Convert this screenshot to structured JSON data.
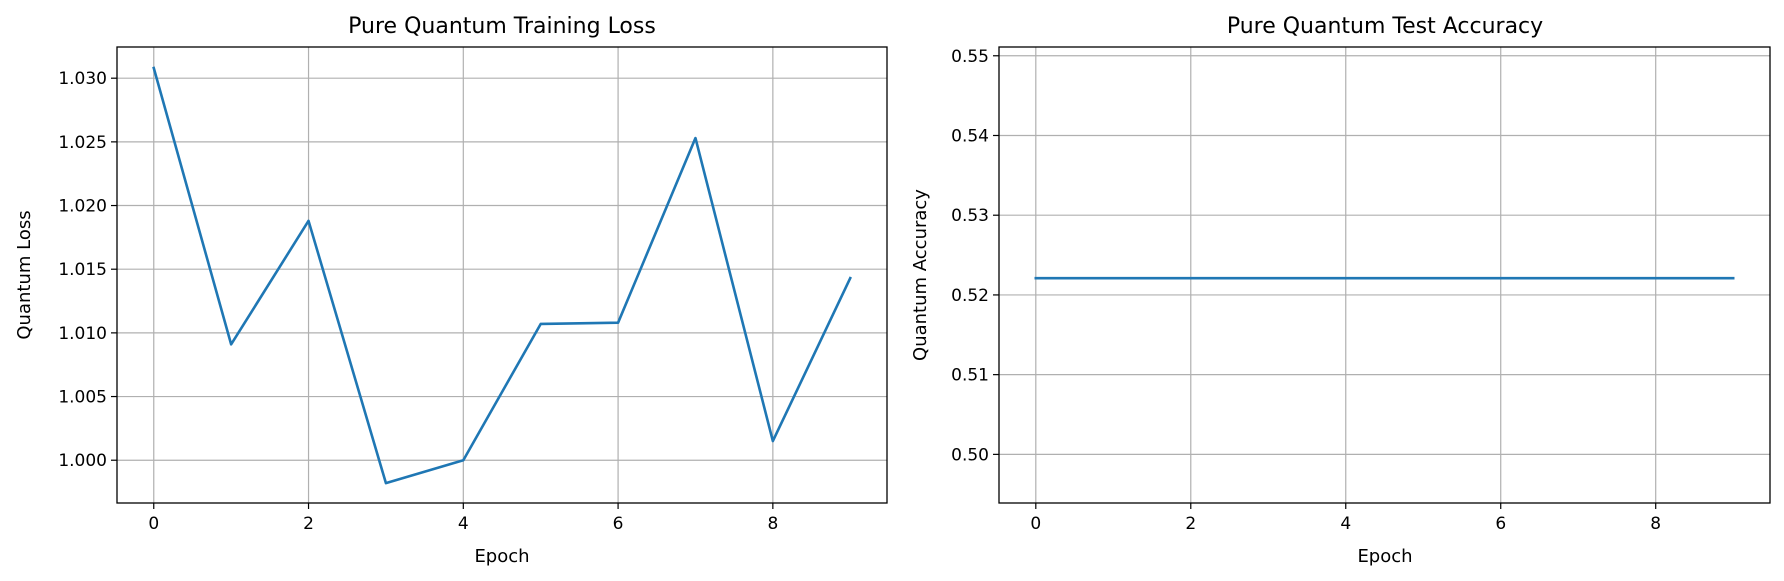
{
  "colors": {
    "line": "#1f77b4",
    "grid": "#b0b0b0",
    "axes": "#000000",
    "background": "#ffffff"
  },
  "chart_data": [
    {
      "type": "line",
      "title": "Pure Quantum Training Loss",
      "xlabel": "Epoch",
      "ylabel": "Quantum Loss",
      "x": [
        0,
        1,
        2,
        3,
        4,
        5,
        6,
        7,
        8,
        9
      ],
      "series": [
        {
          "values": [
            1.0308,
            1.0091,
            1.0188,
            0.9982,
            1.0,
            1.0107,
            1.0108,
            1.0253,
            1.0015,
            1.0143
          ]
        }
      ],
      "xlim": [
        -0.475,
        9.475
      ],
      "ylim": [
        0.99664,
        1.03245
      ],
      "xticks": [
        0,
        2,
        4,
        6,
        8
      ],
      "xtick_labels": [
        "0",
        "2",
        "4",
        "6",
        "8"
      ],
      "yticks": [
        1.0,
        1.005,
        1.01,
        1.015,
        1.02,
        1.025,
        1.03
      ],
      "ytick_labels": [
        "1.000",
        "1.005",
        "1.010",
        "1.015",
        "1.020",
        "1.025",
        "1.030"
      ],
      "grid": true,
      "legend": "none"
    },
    {
      "type": "line",
      "title": "Pure Quantum Test Accuracy",
      "xlabel": "Epoch",
      "ylabel": "Quantum Accuracy",
      "x": [
        0,
        1,
        2,
        3,
        4,
        5,
        6,
        7,
        8,
        9
      ],
      "series": [
        {
          "values": [
            0.5221,
            0.5221,
            0.5221,
            0.5221,
            0.5221,
            0.5221,
            0.5221,
            0.5221,
            0.5221,
            0.5221
          ]
        }
      ],
      "xlim": [
        -0.475,
        9.475
      ],
      "ylim": [
        0.4939,
        0.5511
      ],
      "xticks": [
        0,
        2,
        4,
        6,
        8
      ],
      "xtick_labels": [
        "0",
        "2",
        "4",
        "6",
        "8"
      ],
      "yticks": [
        0.5,
        0.51,
        0.52,
        0.53,
        0.54,
        0.55
      ],
      "ytick_labels": [
        "0.50",
        "0.51",
        "0.52",
        "0.53",
        "0.54",
        "0.55"
      ],
      "grid": true,
      "legend": "none"
    }
  ]
}
